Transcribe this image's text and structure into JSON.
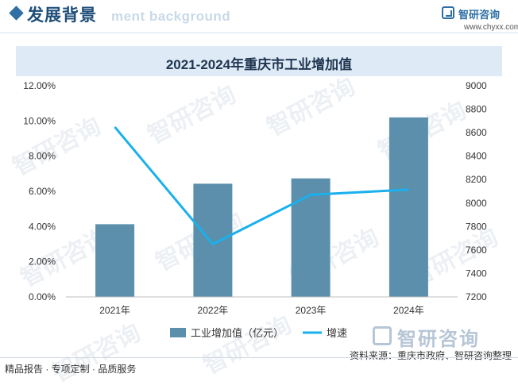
{
  "header": {
    "section_title": "发展背景",
    "section_watermark": "ment background",
    "logo_name": "智研咨询",
    "logo_url": "www.chyxx.com"
  },
  "watermark_text": "智研咨询",
  "brand_name": "智研咨询",
  "footer": {
    "source": "资料来源：重庆市政府、智研咨询整理",
    "slogan": "精品报告 · 专项定制 · 品质服务"
  },
  "colors": {
    "bar": "#5b8fab",
    "line": "#1ab0ec",
    "accent": "#2f6fa6",
    "title_band": "#deeaf5"
  },
  "chart_data": {
    "type": "bar",
    "title": "2021-2024年重庆市工业增加值",
    "categories": [
      "2021年",
      "2022年",
      "2023年",
      "2024年"
    ],
    "series": [
      {
        "name": "工业增加值（亿元）",
        "type": "bar",
        "axis": "right",
        "values": [
          7820,
          8165,
          8210,
          8730
        ]
      },
      {
        "name": "增速",
        "type": "line",
        "axis": "left",
        "values": [
          0.0965,
          0.03,
          0.058,
          0.061
        ]
      }
    ],
    "left_axis": {
      "min": 0,
      "max": 0.12,
      "ticks": [
        "0.00%",
        "2.00%",
        "4.00%",
        "6.00%",
        "8.00%",
        "10.00%",
        "12.00%"
      ]
    },
    "right_axis": {
      "min": 7200,
      "max": 9000,
      "ticks": [
        "7200",
        "7400",
        "7600",
        "7800",
        "8000",
        "8200",
        "8400",
        "8600",
        "8800",
        "9000"
      ]
    },
    "legend": {
      "position": "bottom",
      "bar_label": "工业增加值（亿元）",
      "line_label": "增速"
    },
    "grid": false
  }
}
